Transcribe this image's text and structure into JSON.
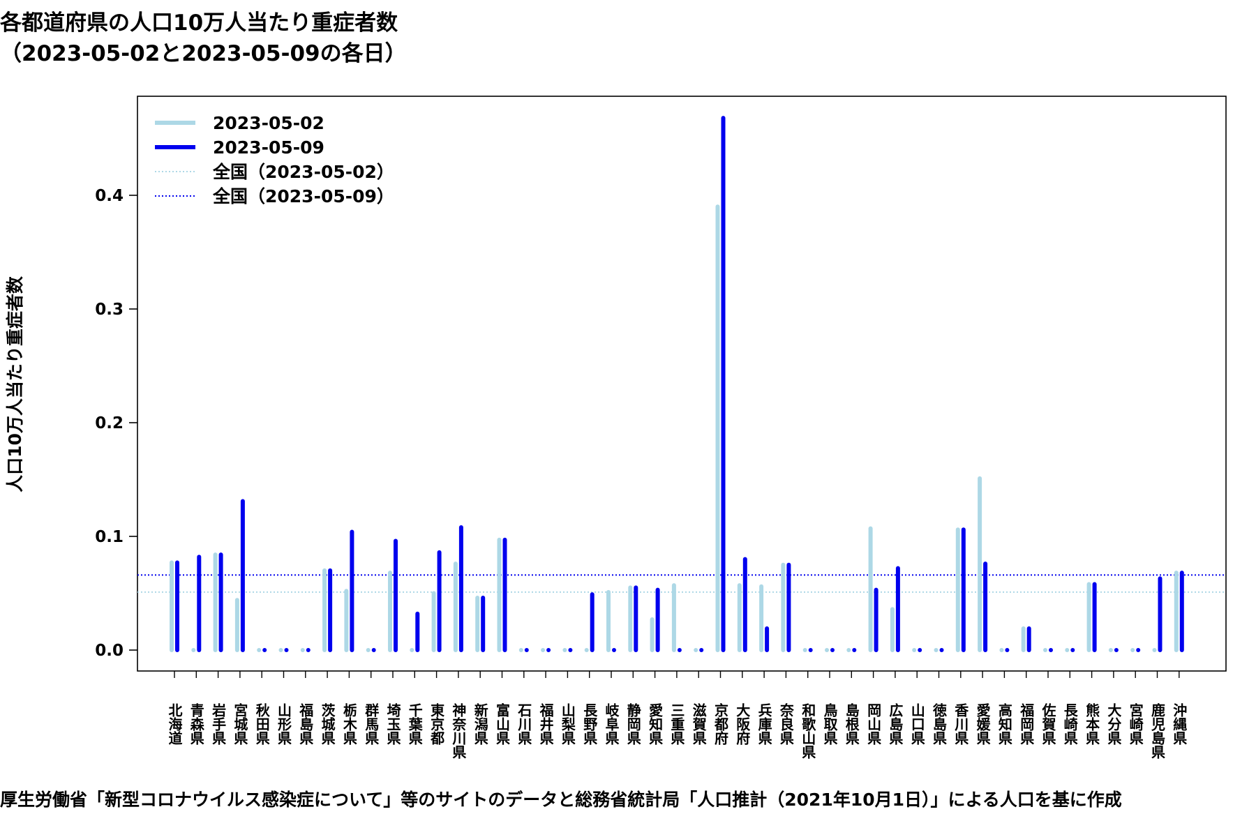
{
  "header": {
    "title": "各都道府県の人口10万人当たり重症者数",
    "subtitle": "（2023-05-02と2023-05-09の各日）"
  },
  "caption": "厚生労働省「新型コロナウイルス感染症について」等のサイトのデータと総務省統計局「人口推計（2021年10月1日）」による人口を基に作成",
  "colors": {
    "series1": "#add8e6",
    "series2": "#0000ee",
    "axis": "#000000"
  },
  "chart_data": {
    "type": "bar",
    "title": "各都道府県の人口10万人当たり重症者数",
    "xlabel": "",
    "ylabel": "人口10万人当たり重症者数",
    "ylim": [
      0,
      0.48
    ],
    "yticks": [
      0.0,
      0.1,
      0.2,
      0.3,
      0.4
    ],
    "ytick_labels": [
      "0.0",
      "0.1",
      "0.2",
      "0.3",
      "0.4"
    ],
    "legend_position": "top-left",
    "categories": [
      "北海道",
      "青森県",
      "岩手県",
      "宮城県",
      "秋田県",
      "山形県",
      "福島県",
      "茨城県",
      "栃木県",
      "群馬県",
      "埼玉県",
      "千葉県",
      "東京都",
      "神奈川県",
      "新潟県",
      "富山県",
      "石川県",
      "福井県",
      "山梨県",
      "長野県",
      "岐阜県",
      "静岡県",
      "愛知県",
      "三重県",
      "滋賀県",
      "京都府",
      "大阪府",
      "兵庫県",
      "奈良県",
      "和歌山県",
      "鳥取県",
      "島根県",
      "岡山県",
      "広島県",
      "山口県",
      "徳島県",
      "香川県",
      "愛媛県",
      "高知県",
      "福岡県",
      "佐賀県",
      "長崎県",
      "熊本県",
      "大分県",
      "宮崎県",
      "鹿児島県",
      "沖縄県"
    ],
    "series": [
      {
        "name": "2023-05-02",
        "color": "#add8e6",
        "values": [
          0.077,
          0.0,
          0.084,
          0.044,
          0.0,
          0.0,
          0.0,
          0.07,
          0.052,
          0.0,
          0.068,
          0.0,
          0.05,
          0.076,
          0.046,
          0.097,
          0.0,
          0.0,
          0.0,
          0.0,
          0.051,
          0.055,
          0.027,
          0.057,
          0.0,
          0.39,
          0.057,
          0.056,
          0.075,
          0.0,
          0.0,
          0.0,
          0.107,
          0.036,
          0.0,
          0.0,
          0.106,
          0.151,
          0.0,
          0.019,
          0.0,
          0.0,
          0.058,
          0.0,
          0.0,
          0.0,
          0.068
        ]
      },
      {
        "name": "2023-05-09",
        "color": "#0000ee",
        "values": [
          0.077,
          0.082,
          0.084,
          0.131,
          0.0,
          0.0,
          0.0,
          0.07,
          0.104,
          0.0,
          0.096,
          0.032,
          0.086,
          0.108,
          0.046,
          0.097,
          0.0,
          0.0,
          0.0,
          0.049,
          0.0,
          0.055,
          0.053,
          0.0,
          0.0,
          0.468,
          0.08,
          0.019,
          0.075,
          0.0,
          0.0,
          0.0,
          0.053,
          0.072,
          0.0,
          0.0,
          0.106,
          0.076,
          0.0,
          0.019,
          0.0,
          0.0,
          0.058,
          0.0,
          0.0,
          0.063,
          0.068
        ]
      }
    ],
    "reference_lines": [
      {
        "name": "全国（2023-05-02）",
        "value": 0.051,
        "color": "#add8e6",
        "style": "dotted"
      },
      {
        "name": "全国（2023-05-09）",
        "value": 0.066,
        "color": "#0000ee",
        "style": "dotted"
      }
    ],
    "legend": [
      {
        "label": "2023-05-02",
        "style": "solid"
      },
      {
        "label": "2023-05-09",
        "style": "solid"
      },
      {
        "label": "全国（2023-05-02）",
        "style": "dotted"
      },
      {
        "label": "全国（2023-05-09）",
        "style": "dotted"
      }
    ]
  }
}
